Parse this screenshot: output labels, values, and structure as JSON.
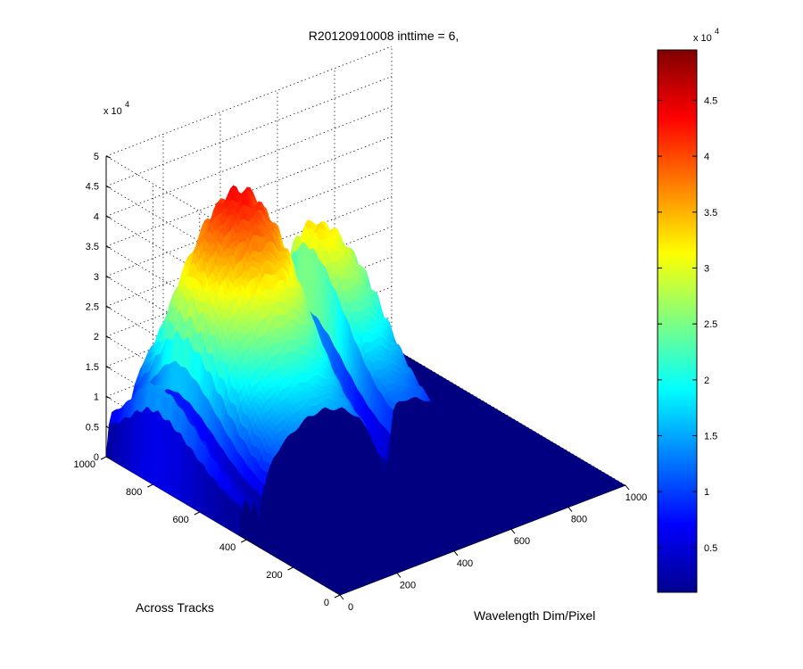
{
  "chart_data": {
    "type": "surface",
    "title": "R20120910008 inttime = 6,",
    "xlabel": "Wavelength Dim/Pixel",
    "ylabel": "Across Tracks",
    "x_ticks": [
      "0",
      "200",
      "400",
      "600",
      "800",
      "1000"
    ],
    "y_ticks": [
      "0",
      "200",
      "400",
      "600",
      "800",
      "1000"
    ],
    "z_ticks": [
      "0",
      "0.5",
      "1",
      "1.5",
      "2",
      "2.5",
      "3",
      "3.5",
      "4",
      "4.5",
      "5"
    ],
    "z_multiplier": "x 10",
    "z_exponent": "4",
    "xlim": [
      0,
      1000
    ],
    "ylim": [
      0,
      1000
    ],
    "zlim": [
      0,
      50000
    ],
    "grid": true,
    "colormap": "jet",
    "colorbar": {
      "ticks": [
        "0.5",
        "1",
        "1.5",
        "2",
        "2.5",
        "3",
        "3.5",
        "4",
        "4.5"
      ],
      "multiplier": "x 10",
      "exponent": "4",
      "range": [
        1000,
        49500
      ],
      "placement": "right"
    },
    "illuminated_region": {
      "x_range": [
        0,
        720
      ],
      "y_range": [
        430,
        1000
      ]
    },
    "spectral_profile": {
      "x": [
        0,
        10,
        20,
        30,
        40,
        50,
        60,
        70,
        80,
        100,
        120,
        150,
        180,
        210,
        240,
        270,
        300,
        330,
        360,
        390,
        420,
        450,
        480,
        500,
        510,
        520,
        530,
        540,
        550,
        560,
        580,
        600,
        620,
        640,
        660,
        680,
        700,
        720
      ],
      "z": [
        0,
        12000,
        16000,
        13000,
        8000,
        13000,
        9000,
        2500,
        14000,
        23000,
        29000,
        33500,
        36500,
        39000,
        41500,
        42500,
        43000,
        42000,
        40500,
        37500,
        33000,
        26000,
        15000,
        6000,
        2500,
        8000,
        20000,
        30000,
        32000,
        32500,
        32500,
        32000,
        31000,
        29500,
        28000,
        26000,
        22000,
        0
      ]
    },
    "across_track_peak": 800
  }
}
